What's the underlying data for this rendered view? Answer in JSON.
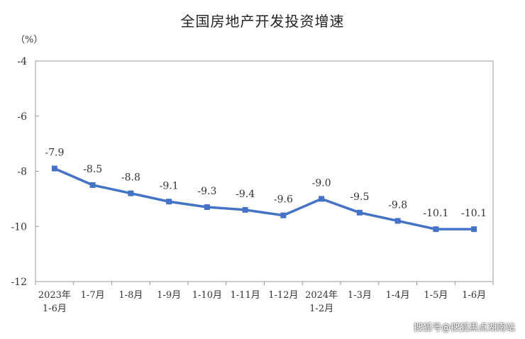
{
  "chart_data": {
    "type": "line",
    "title": "全国房地产开发投资增速",
    "ylabel": "（%）",
    "xlabel": "",
    "ylim": [
      -12,
      -4
    ],
    "yticks": [
      "-4",
      "-6",
      "-8",
      "-10",
      "-12"
    ],
    "categories": [
      [
        "2023年",
        "1-6月"
      ],
      [
        "1-7月"
      ],
      [
        "1-8月"
      ],
      [
        "1-9月"
      ],
      [
        "1-10月"
      ],
      [
        "1-11月"
      ],
      [
        "1-12月"
      ],
      [
        "2024年",
        "1-2月"
      ],
      [
        "1-3月"
      ],
      [
        "1-4月"
      ],
      [
        "1-5月"
      ],
      [
        "1-6月"
      ]
    ],
    "series": [
      {
        "values": [
          -7.9,
          -8.5,
          -8.8,
          -9.1,
          -9.3,
          -9.4,
          -9.6,
          -9.0,
          -9.5,
          -9.8,
          -10.1,
          -10.1
        ],
        "labels": [
          "-7.9",
          "-8.5",
          "-8.8",
          "-9.1",
          "-9.3",
          "-9.4",
          "-9.6",
          "-9.0",
          "-9.5",
          "-9.8",
          "-10.1",
          "-10.1"
        ]
      }
    ],
    "colors": {
      "line": "#4472C4",
      "axis": "#999999",
      "text": "#333333"
    },
    "grid": false,
    "legend": "none"
  },
  "watermark": "搜狐号@搜狐黑点湖南站"
}
